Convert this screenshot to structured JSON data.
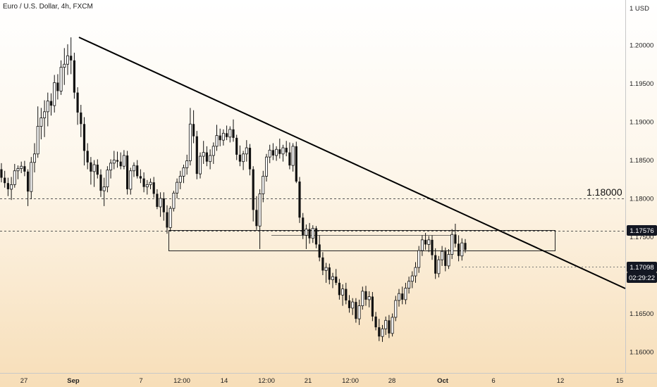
{
  "header": {
    "title": "Euro / U.S. Dollar, 4h, FXCM"
  },
  "price_axis": {
    "currency": "1 USD",
    "ticks": [
      "1.20000",
      "1.19500",
      "1.19000",
      "1.18500",
      "1.18000",
      "1.17500",
      "1.17000",
      "1.16500",
      "1.16000"
    ]
  },
  "time_axis": {
    "labels": [
      {
        "text": "27",
        "bold": false
      },
      {
        "text": "Sep",
        "bold": true
      },
      {
        "text": "7",
        "bold": false
      },
      {
        "text": "12:00",
        "bold": false
      },
      {
        "text": "14",
        "bold": false
      },
      {
        "text": "12:00",
        "bold": false
      },
      {
        "text": "21",
        "bold": false
      },
      {
        "text": "12:00",
        "bold": false
      },
      {
        "text": "28",
        "bold": false
      },
      {
        "text": "Oct",
        "bold": true
      },
      {
        "text": "6",
        "bold": false
      },
      {
        "text": "12",
        "bold": false
      },
      {
        "text": "15",
        "bold": false
      }
    ]
  },
  "annotations": {
    "level_label": "1.18000",
    "resistance_tag": "1.17576",
    "current_price_tag": "1.17098",
    "countdown_tag": "02:29:22"
  },
  "colors": {
    "candle": "#111111",
    "trendline": "#000000",
    "tag_bg": "#131722",
    "tag_text": "#ffffff"
  },
  "chart_data": {
    "type": "candlestick",
    "title": "Euro / U.S. Dollar, 4h, FXCM",
    "ylim": [
      1.159,
      1.209
    ],
    "candles": [
      [
        1.1838,
        1.1846,
        1.1821,
        1.1827
      ],
      [
        1.1827,
        1.1836,
        1.1814,
        1.182
      ],
      [
        1.182,
        1.1827,
        1.1803,
        1.1812
      ],
      [
        1.1812,
        1.1828,
        1.1798,
        1.1818
      ],
      [
        1.1818,
        1.1845,
        1.1814,
        1.1836
      ],
      [
        1.1836,
        1.1843,
        1.1825,
        1.1839
      ],
      [
        1.1839,
        1.1848,
        1.1833,
        1.1842
      ],
      [
        1.1842,
        1.1849,
        1.1829,
        1.1835
      ],
      [
        1.1835,
        1.1838,
        1.179,
        1.1809
      ],
      [
        1.1809,
        1.1854,
        1.1799,
        1.1847
      ],
      [
        1.1847,
        1.1872,
        1.1834,
        1.1858
      ],
      [
        1.1858,
        1.192,
        1.1853,
        1.1894
      ],
      [
        1.1894,
        1.1918,
        1.1877,
        1.1905
      ],
      [
        1.1905,
        1.1928,
        1.188,
        1.1913
      ],
      [
        1.1913,
        1.1938,
        1.1894,
        1.1927
      ],
      [
        1.1927,
        1.1937,
        1.1908,
        1.1921
      ],
      [
        1.1921,
        1.1961,
        1.1912,
        1.1951
      ],
      [
        1.1951,
        1.1962,
        1.1929,
        1.194
      ],
      [
        1.194,
        1.198,
        1.1935,
        1.1971
      ],
      [
        1.1971,
        1.1996,
        1.1948,
        1.1975
      ],
      [
        1.1975,
        1.2001,
        1.1961,
        1.1986
      ],
      [
        1.1986,
        1.201,
        1.1962,
        1.198
      ],
      [
        1.198,
        1.199,
        1.193,
        1.1938
      ],
      [
        1.1938,
        1.1945,
        1.1896,
        1.1912
      ],
      [
        1.1912,
        1.1922,
        1.188,
        1.1897
      ],
      [
        1.1897,
        1.1906,
        1.1843,
        1.1862
      ],
      [
        1.1862,
        1.1872,
        1.1838,
        1.1847
      ],
      [
        1.1847,
        1.1854,
        1.1818,
        1.1835
      ],
      [
        1.1835,
        1.185,
        1.1815,
        1.1844
      ],
      [
        1.1844,
        1.1851,
        1.1826,
        1.1831
      ],
      [
        1.1831,
        1.1838,
        1.1802,
        1.181
      ],
      [
        1.181,
        1.1827,
        1.179,
        1.1815
      ],
      [
        1.1815,
        1.1842,
        1.1808,
        1.1837
      ],
      [
        1.1837,
        1.1851,
        1.1826,
        1.1846
      ],
      [
        1.1846,
        1.1862,
        1.1838,
        1.185
      ],
      [
        1.185,
        1.1861,
        1.184,
        1.1848
      ],
      [
        1.1848,
        1.186,
        1.1838,
        1.1842
      ],
      [
        1.1842,
        1.1863,
        1.1838,
        1.1856
      ],
      [
        1.1856,
        1.1862,
        1.1805,
        1.1812
      ],
      [
        1.1812,
        1.184,
        1.1805,
        1.1836
      ],
      [
        1.1836,
        1.1847,
        1.1828,
        1.1843
      ],
      [
        1.1843,
        1.185,
        1.1826,
        1.1829
      ],
      [
        1.1829,
        1.1838,
        1.182,
        1.1826
      ],
      [
        1.1826,
        1.1834,
        1.1808,
        1.1815
      ],
      [
        1.1815,
        1.1824,
        1.1805,
        1.1818
      ],
      [
        1.1818,
        1.1826,
        1.1812,
        1.1821
      ],
      [
        1.1821,
        1.1828,
        1.1801,
        1.1806
      ],
      [
        1.1806,
        1.1812,
        1.1786,
        1.1789
      ],
      [
        1.1789,
        1.1808,
        1.1776,
        1.18
      ],
      [
        1.18,
        1.1808,
        1.1771,
        1.1782
      ],
      [
        1.1782,
        1.1791,
        1.1754,
        1.1762
      ],
      [
        1.1762,
        1.179,
        1.1757,
        1.1787
      ],
      [
        1.1787,
        1.181,
        1.1783,
        1.1807
      ],
      [
        1.1807,
        1.1826,
        1.18,
        1.1821
      ],
      [
        1.1821,
        1.1836,
        1.1812,
        1.1829
      ],
      [
        1.1829,
        1.1844,
        1.182,
        1.184
      ],
      [
        1.184,
        1.1857,
        1.1831,
        1.1849
      ],
      [
        1.1849,
        1.1918,
        1.1843,
        1.1897
      ],
      [
        1.1897,
        1.1915,
        1.1872,
        1.1881
      ],
      [
        1.1881,
        1.1888,
        1.1825,
        1.1832
      ],
      [
        1.1832,
        1.186,
        1.1826,
        1.1855
      ],
      [
        1.1855,
        1.1875,
        1.1845,
        1.186
      ],
      [
        1.186,
        1.1868,
        1.1842,
        1.1848
      ],
      [
        1.1848,
        1.1864,
        1.1838,
        1.1856
      ],
      [
        1.1856,
        1.1873,
        1.1845,
        1.1868
      ],
      [
        1.1868,
        1.1896,
        1.1862,
        1.1882
      ],
      [
        1.1882,
        1.1891,
        1.1868,
        1.1876
      ],
      [
        1.1876,
        1.189,
        1.1869,
        1.1885
      ],
      [
        1.1885,
        1.1895,
        1.1876,
        1.188
      ],
      [
        1.188,
        1.1894,
        1.1873,
        1.189
      ],
      [
        1.189,
        1.1903,
        1.1874,
        1.1879
      ],
      [
        1.1879,
        1.1883,
        1.185,
        1.1857
      ],
      [
        1.1857,
        1.1869,
        1.1842,
        1.1848
      ],
      [
        1.1848,
        1.1862,
        1.1837,
        1.1858
      ],
      [
        1.1858,
        1.1876,
        1.1848,
        1.1866
      ],
      [
        1.1866,
        1.1871,
        1.183,
        1.1838
      ],
      [
        1.1838,
        1.1842,
        1.177,
        1.1785
      ],
      [
        1.1785,
        1.1803,
        1.1759,
        1.1764
      ],
      [
        1.1764,
        1.1812,
        1.1734,
        1.1806
      ],
      [
        1.1806,
        1.1836,
        1.1795,
        1.1829
      ],
      [
        1.1829,
        1.1858,
        1.1822,
        1.1854
      ],
      [
        1.1854,
        1.187,
        1.1846,
        1.1863
      ],
      [
        1.1863,
        1.1872,
        1.185,
        1.1856
      ],
      [
        1.1856,
        1.1868,
        1.1849,
        1.1864
      ],
      [
        1.1864,
        1.1878,
        1.1852,
        1.1858
      ],
      [
        1.1858,
        1.187,
        1.1848,
        1.1866
      ],
      [
        1.1866,
        1.1875,
        1.1855,
        1.186
      ],
      [
        1.186,
        1.1873,
        1.1838,
        1.1843
      ],
      [
        1.1843,
        1.1872,
        1.1835,
        1.1868
      ],
      [
        1.1868,
        1.1874,
        1.182,
        1.1822
      ],
      [
        1.1822,
        1.1828,
        1.1768,
        1.1775
      ],
      [
        1.1775,
        1.1781,
        1.1747,
        1.1752
      ],
      [
        1.1752,
        1.1766,
        1.1734,
        1.176
      ],
      [
        1.176,
        1.1768,
        1.1741,
        1.1748
      ],
      [
        1.1748,
        1.1765,
        1.1742,
        1.1761
      ],
      [
        1.1761,
        1.1764,
        1.1735,
        1.174
      ],
      [
        1.174,
        1.1752,
        1.1718,
        1.1723
      ],
      [
        1.1723,
        1.173,
        1.17,
        1.1706
      ],
      [
        1.1706,
        1.1716,
        1.169,
        1.171
      ],
      [
        1.171,
        1.1715,
        1.1688,
        1.1694
      ],
      [
        1.1694,
        1.1703,
        1.1683,
        1.1698
      ],
      [
        1.1698,
        1.1708,
        1.1687,
        1.169
      ],
      [
        1.169,
        1.1695,
        1.1668,
        1.1674
      ],
      [
        1.1674,
        1.1688,
        1.166,
        1.1682
      ],
      [
        1.1682,
        1.169,
        1.1662,
        1.1667
      ],
      [
        1.1667,
        1.1674,
        1.1651,
        1.1657
      ],
      [
        1.1657,
        1.167,
        1.1648,
        1.1665
      ],
      [
        1.1665,
        1.167,
        1.1638,
        1.1643
      ],
      [
        1.1643,
        1.1668,
        1.1635,
        1.166
      ],
      [
        1.166,
        1.1685,
        1.1655,
        1.1679
      ],
      [
        1.1679,
        1.1686,
        1.166,
        1.1668
      ],
      [
        1.1668,
        1.1679,
        1.1658,
        1.1672
      ],
      [
        1.1672,
        1.1678,
        1.164,
        1.1646
      ],
      [
        1.1646,
        1.1652,
        1.1628,
        1.1632
      ],
      [
        1.1632,
        1.1643,
        1.1614,
        1.162
      ],
      [
        1.162,
        1.1635,
        1.1613,
        1.163
      ],
      [
        1.163,
        1.1646,
        1.1622,
        1.1641
      ],
      [
        1.1641,
        1.1648,
        1.1618,
        1.1624
      ],
      [
        1.1624,
        1.165,
        1.162,
        1.1645
      ],
      [
        1.1645,
        1.1673,
        1.164,
        1.1667
      ],
      [
        1.1667,
        1.1682,
        1.1659,
        1.1676
      ],
      [
        1.1676,
        1.1685,
        1.1662,
        1.1668
      ],
      [
        1.1668,
        1.169,
        1.1662,
        1.1683
      ],
      [
        1.1683,
        1.1698,
        1.1676,
        1.1692
      ],
      [
        1.1692,
        1.1705,
        1.1683,
        1.1699
      ],
      [
        1.1699,
        1.1717,
        1.169,
        1.171
      ],
      [
        1.171,
        1.1738,
        1.1703,
        1.1732
      ],
      [
        1.1732,
        1.1752,
        1.1725,
        1.1746
      ],
      [
        1.1746,
        1.1755,
        1.1733,
        1.174
      ],
      [
        1.174,
        1.1751,
        1.173,
        1.1746
      ],
      [
        1.1746,
        1.1752,
        1.172,
        1.1726
      ],
      [
        1.1726,
        1.1735,
        1.1695,
        1.1702
      ],
      [
        1.1702,
        1.1725,
        1.1697,
        1.172
      ],
      [
        1.172,
        1.1738,
        1.1712,
        1.1731
      ],
      [
        1.1731,
        1.1736,
        1.1705,
        1.1712
      ],
      [
        1.1712,
        1.1734,
        1.1708,
        1.1727
      ],
      [
        1.1727,
        1.176,
        1.1721,
        1.1753
      ],
      [
        1.1753,
        1.1767,
        1.1736,
        1.1741
      ],
      [
        1.1741,
        1.1752,
        1.1718,
        1.1725
      ],
      [
        1.1725,
        1.1748,
        1.1719,
        1.1742
      ],
      [
        1.1742,
        1.1747,
        1.1729,
        1.1733
      ],
      [
        1.1733,
        1.1736,
        1.1702,
        1.1708
      ],
      [
        1.1708,
        1.1723,
        1.1698,
        1.1715
      ],
      [
        1.1715,
        1.1722,
        1.1701,
        1.171
      ]
    ]
  }
}
